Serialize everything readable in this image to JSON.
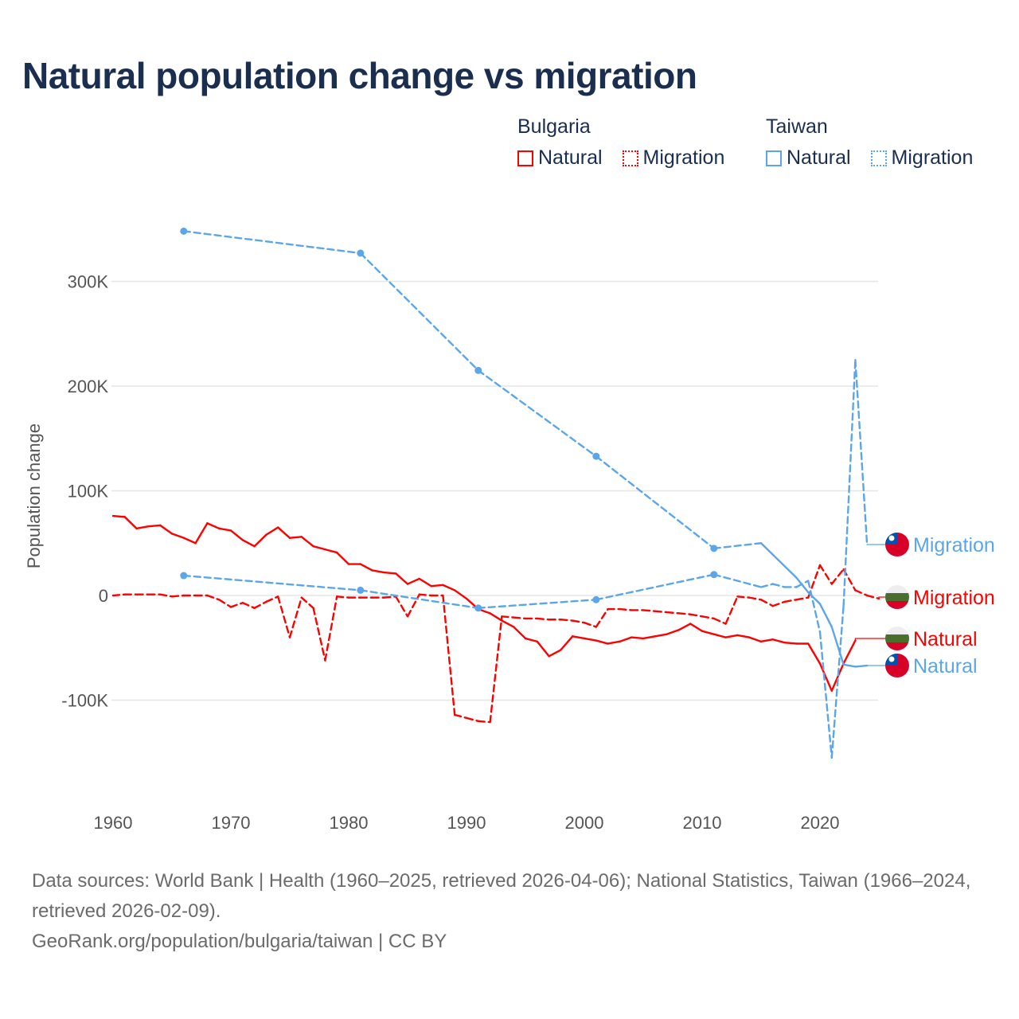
{
  "title": "Natural population change vs migration",
  "legend": {
    "groups": [
      {
        "title": "Bulgaria",
        "color": "#ff0000",
        "items": [
          "Natural",
          "Migration"
        ]
      },
      {
        "title": "Taiwan",
        "color": "#5ba6ea",
        "items": [
          "Natural",
          "Migration"
        ]
      }
    ]
  },
  "footer": {
    "sources": "Data sources: World Bank | Health (1960–2025, retrieved 2026-04-06); National Statistics, Taiwan (1966–2024, retrieved 2026-02-09).",
    "credit": "GeoRank.org/population/bulgaria/taiwan | CC BY"
  },
  "chart_data": {
    "type": "line",
    "title": "Natural population change vs migration",
    "ylabel": "Population change",
    "xlabel": "",
    "xlim": [
      1960,
      2025
    ],
    "ylim": [
      -170000,
      370000
    ],
    "x_ticks": [
      1960,
      1970,
      1980,
      1990,
      2000,
      2010,
      2020
    ],
    "y_ticks": [
      {
        "v": 300000,
        "label": "300K"
      },
      {
        "v": 200000,
        "label": "200K"
      },
      {
        "v": 100000,
        "label": "100K"
      },
      {
        "v": 0,
        "label": "0"
      },
      {
        "v": -100000,
        "label": "-100K"
      }
    ],
    "grid": true,
    "series": [
      {
        "name": "Bulgaria Natural",
        "label": "Natural",
        "country": "Bulgaria",
        "style": "solid",
        "color": "#ff0000",
        "x": [
          1960,
          1961,
          1962,
          1963,
          1964,
          1965,
          1966,
          1967,
          1968,
          1969,
          1970,
          1971,
          1972,
          1973,
          1974,
          1975,
          1976,
          1977,
          1978,
          1979,
          1980,
          1981,
          1982,
          1983,
          1984,
          1985,
          1986,
          1987,
          1988,
          1989,
          1990,
          1991,
          1992,
          1993,
          1994,
          1995,
          1996,
          1997,
          1998,
          1999,
          2000,
          2001,
          2002,
          2003,
          2004,
          2005,
          2006,
          2007,
          2008,
          2009,
          2010,
          2011,
          2012,
          2013,
          2014,
          2015,
          2016,
          2017,
          2018,
          2019,
          2020,
          2021,
          2022,
          2023
        ],
        "y": [
          76,
          75,
          64,
          66,
          67,
          59,
          55,
          50,
          69,
          64,
          62,
          53,
          47,
          58,
          65,
          55,
          56,
          47,
          44,
          41,
          30,
          30,
          24,
          22,
          21,
          11,
          16,
          9,
          10,
          5,
          -3,
          -13,
          -17,
          -24,
          -30,
          -41,
          -44,
          -58,
          -52,
          -39,
          -41,
          -43,
          -46,
          -44,
          -40,
          -41,
          -39,
          -37,
          -33,
          -27,
          -34,
          -37,
          -40,
          -38,
          -40,
          -44,
          -42,
          -45,
          -46,
          -46,
          -65,
          -91,
          -65,
          -43
        ]
      },
      {
        "name": "Bulgaria Migration",
        "label": "Migration",
        "country": "Bulgaria",
        "style": "dashed",
        "color": "#ff0000",
        "x": [
          1960,
          1961,
          1962,
          1963,
          1964,
          1965,
          1966,
          1967,
          1968,
          1969,
          1970,
          1971,
          1972,
          1973,
          1974,
          1975,
          1976,
          1977,
          1978,
          1979,
          1980,
          1981,
          1982,
          1983,
          1984,
          1985,
          1986,
          1987,
          1988,
          1989,
          1990,
          1991,
          1992,
          1993,
          1994,
          1995,
          1996,
          1997,
          1998,
          1999,
          2000,
          2001,
          2002,
          2003,
          2004,
          2005,
          2006,
          2007,
          2008,
          2009,
          2010,
          2011,
          2012,
          2013,
          2014,
          2015,
          2016,
          2017,
          2018,
          2019,
          2020,
          2021,
          2022,
          2023,
          2024,
          2025
        ],
        "y": [
          0,
          1,
          1,
          1,
          1,
          -1,
          0,
          0,
          0,
          -4,
          -11,
          -7,
          -12,
          -6,
          -1,
          -40,
          -2,
          -12,
          -62,
          -1,
          -2,
          -2,
          -2,
          -2,
          -1,
          -20,
          1,
          0,
          0,
          -114,
          -117,
          -120,
          -121,
          -20,
          -21,
          -22,
          -22,
          -23,
          -23,
          -24,
          -26,
          -30,
          -13,
          -13,
          -14,
          -14,
          -15,
          -16,
          -17,
          -18,
          -20,
          -22,
          -27,
          -1,
          -2,
          -4,
          -10,
          -6,
          -4,
          -2,
          29,
          11,
          25,
          5,
          0,
          -3
        ]
      },
      {
        "name": "Taiwan Natural",
        "label": "Natural",
        "country": "Taiwan",
        "style": "solid",
        "color": "#5ba6ea",
        "x": [
          1966,
          1981,
          1991,
          2001,
          2011,
          2015,
          2016,
          2017,
          2018,
          2019,
          2020,
          2021,
          2022,
          2023,
          2024
        ],
        "y": [
          348,
          327,
          215,
          133,
          45,
          50,
          39,
          28,
          17,
          3,
          -8,
          -30,
          -66,
          -68,
          -67
        ]
      },
      {
        "name": "Taiwan Migration",
        "label": "Migration",
        "country": "Taiwan",
        "style": "dashed",
        "color": "#5ba6ea",
        "x": [
          1966,
          1981,
          1991,
          2001,
          2011,
          2015,
          2016,
          2017,
          2018,
          2019,
          2020,
          2021,
          2022,
          2023,
          2024
        ],
        "y": [
          19,
          5,
          -12,
          -4,
          20,
          8,
          11,
          8,
          8,
          14,
          -35,
          -155,
          -10,
          225,
          48
        ]
      }
    ],
    "y_units": "thousands"
  }
}
